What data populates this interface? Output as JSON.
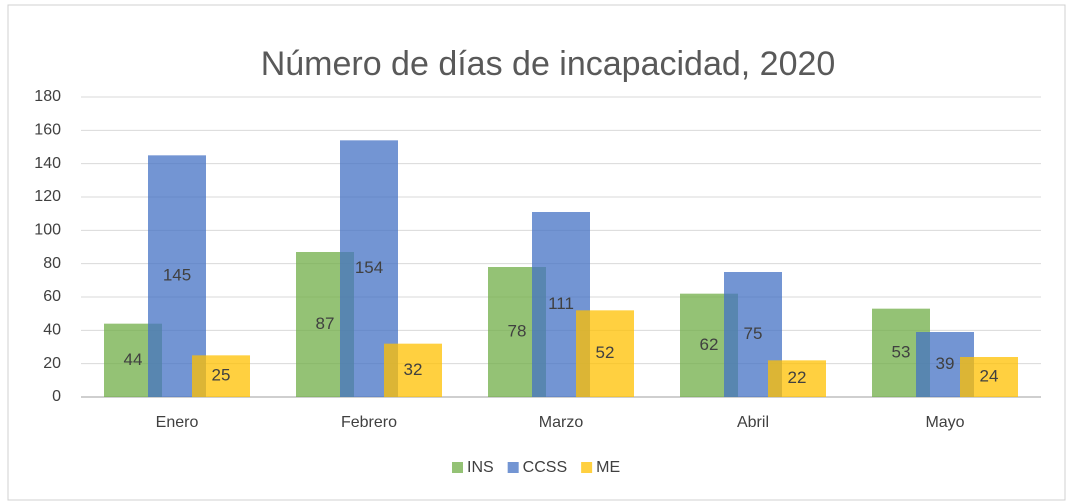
{
  "chart_data": {
    "type": "bar",
    "title": "Número de días de incapacidad, 2020",
    "categories": [
      "Enero",
      "Febrero",
      "Marzo",
      "Abril",
      "Mayo"
    ],
    "series": [
      {
        "name": "INS",
        "color": "#70ad47",
        "values": [
          44,
          87,
          78,
          62,
          53
        ]
      },
      {
        "name": "CCSS",
        "color": "#4472c4",
        "values": [
          145,
          154,
          111,
          75,
          39
        ]
      },
      {
        "name": "ME",
        "color": "#ffc000",
        "values": [
          25,
          32,
          52,
          22,
          24
        ]
      }
    ],
    "ylim": [
      0,
      180
    ],
    "yticks": [
      0,
      20,
      40,
      60,
      80,
      100,
      120,
      140,
      160,
      180
    ],
    "grid": true,
    "legend": "bottom"
  }
}
